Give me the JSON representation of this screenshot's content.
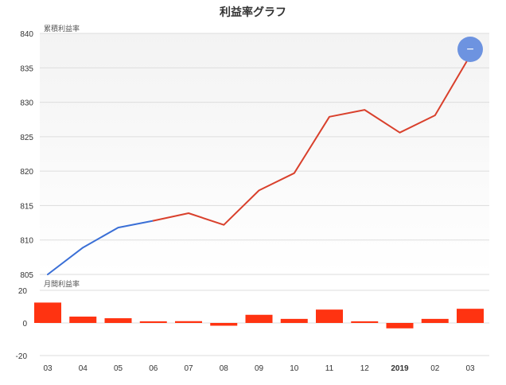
{
  "colors": {
    "background": "#ffffff",
    "plot_gradient_top": "#f3f3f3",
    "plot_gradient_bottom": "#ffffff",
    "grid": "#dddddd",
    "line_blue": "#3a6fd6",
    "line_red": "#d9402c",
    "bar_red": "#ff3311",
    "button": "#6d93e0"
  },
  "reset_button": {
    "label": "−",
    "icon": "minus-icon"
  },
  "chart_data": [
    {
      "type": "line",
      "title": "利益率グラフ",
      "pane_label": "累積利益率",
      "categories": [
        "03",
        "04",
        "05",
        "06",
        "07",
        "08",
        "09",
        "10",
        "11",
        "12",
        "2019",
        "02",
        "03"
      ],
      "series": [
        {
          "values": [
            805.0,
            808.9,
            811.8,
            812.8,
            null,
            null,
            null,
            null,
            null,
            null,
            null,
            null,
            null
          ],
          "color": "#3a6fd6"
        },
        {
          "values": [
            null,
            null,
            null,
            812.8,
            813.9,
            812.2,
            817.2,
            819.7,
            827.9,
            828.9,
            825.6,
            828.1,
            836.8
          ],
          "color": "#d9402c"
        }
      ],
      "ylim": [
        805,
        840
      ],
      "yticks": [
        805,
        810,
        815,
        820,
        825,
        830,
        835,
        840
      ],
      "grid": true
    },
    {
      "type": "bar",
      "pane_label": "月間利益率",
      "categories": [
        "03",
        "04",
        "05",
        "06",
        "07",
        "08",
        "09",
        "10",
        "11",
        "12",
        "2019",
        "02",
        "03"
      ],
      "values": [
        12.5,
        3.9,
        2.9,
        1.0,
        1.1,
        -1.7,
        5.0,
        2.5,
        8.2,
        1.0,
        -3.3,
        2.5,
        8.7
      ],
      "ylim": [
        -20,
        20
      ],
      "yticks": [
        -20,
        0,
        20
      ],
      "bold_categories": [
        "2019"
      ],
      "color": "#ff3311"
    }
  ]
}
